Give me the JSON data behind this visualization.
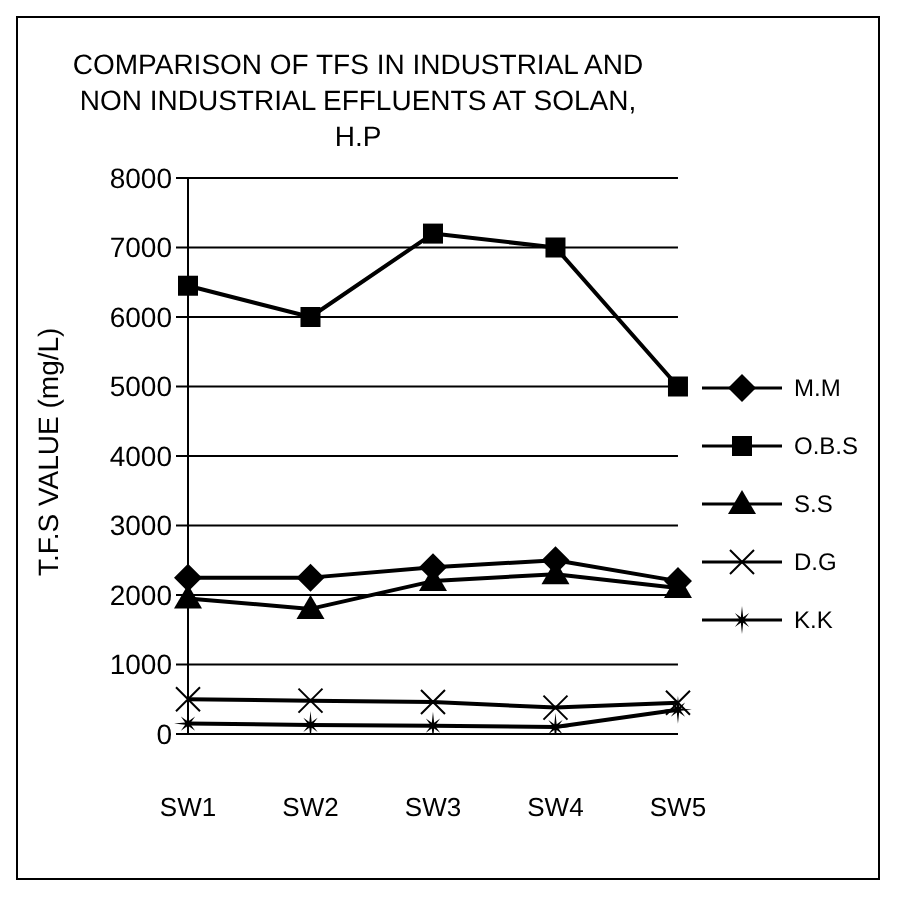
{
  "chart_data": {
    "type": "line",
    "title": "COMPARISON OF TFS IN INDUSTRIAL AND NON INDUSTRIAL EFFLUENTS AT SOLAN, H.P",
    "ylabel": "T.F.S VALUE (mg/L)",
    "categories": [
      "SW1",
      "SW2",
      "SW3",
      "SW4",
      "SW5"
    ],
    "series": [
      {
        "name": "M.M",
        "color": "#000000",
        "marker": "diamond",
        "values": [
          2250,
          2250,
          2400,
          2500,
          2200
        ]
      },
      {
        "name": "O.B.S",
        "color": "#000000",
        "marker": "square",
        "values": [
          6450,
          6000,
          7200,
          7000,
          5000
        ]
      },
      {
        "name": "S.S",
        "color": "#000000",
        "marker": "triangle",
        "values": [
          1950,
          1800,
          2200,
          2300,
          2100
        ]
      },
      {
        "name": "D.G",
        "color": "#000000",
        "marker": "cross",
        "values": [
          500,
          480,
          460,
          380,
          450
        ]
      },
      {
        "name": "K.K",
        "color": "#000000",
        "marker": "star",
        "values": [
          150,
          130,
          120,
          100,
          350
        ]
      }
    ],
    "ylim": [
      0,
      8000
    ],
    "yticks": [
      0,
      1000,
      2000,
      3000,
      4000,
      5000,
      6000,
      7000,
      8000
    ],
    "grid": "y",
    "legend": "right",
    "line_style": "solid"
  }
}
